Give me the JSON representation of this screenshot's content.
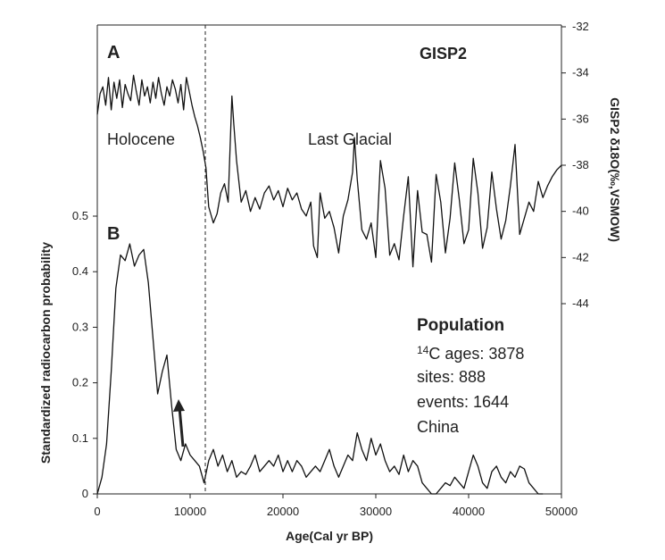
{
  "chart_data": [
    {
      "panel": "A",
      "type": "line",
      "title": "GISP2",
      "ylabel": "GISP2 δ18O(‰,VSMOW)",
      "xlabel": "Age(Cal yr BP)",
      "xlim": [
        0,
        50000
      ],
      "ylim": [
        -44,
        -32
      ],
      "y_inverted": true,
      "y_ticks": [
        -32,
        -34,
        -36,
        -38,
        -40,
        -42,
        -44
      ],
      "annotations": [
        "Holocene",
        "Last Glacial"
      ],
      "x": [
        0,
        300,
        600,
        900,
        1200,
        1500,
        1800,
        2100,
        2400,
        2700,
        3000,
        3300,
        3600,
        3900,
        4200,
        4500,
        4800,
        5100,
        5400,
        5700,
        6000,
        6300,
        6600,
        6900,
        7200,
        7500,
        7800,
        8100,
        8400,
        8700,
        9000,
        9300,
        9600,
        9900,
        10200,
        10500,
        10800,
        11100,
        11400,
        11700,
        12000,
        12500,
        12900,
        13300,
        13700,
        14100,
        14500,
        14700,
        15000,
        15500,
        16000,
        16500,
        17000,
        17500,
        18000,
        18500,
        19000,
        19500,
        20000,
        20500,
        21000,
        21500,
        22000,
        22500,
        23000,
        23300,
        23700,
        24000,
        24500,
        25000,
        25500,
        26000,
        26500,
        27000,
        27500,
        27700,
        28000,
        28500,
        29000,
        29500,
        30000,
        30500,
        31000,
        31500,
        32000,
        32500,
        33000,
        33500,
        34000,
        34500,
        35000,
        35500,
        36000,
        36500,
        37000,
        37500,
        38000,
        38500,
        39000,
        39500,
        40000,
        40500,
        41000,
        41500,
        42000,
        42500,
        43000,
        43500,
        44000,
        44500,
        45000,
        45500,
        46000,
        46500,
        47000,
        47500,
        48000,
        48500,
        49000,
        49500,
        50000
      ],
      "values": [
        -35.8,
        -34.9,
        -34.6,
        -35.4,
        -34.2,
        -35.6,
        -34.4,
        -35.1,
        -34.3,
        -35.5,
        -34.5,
        -34.9,
        -35.2,
        -34.1,
        -34.8,
        -35.4,
        -34.3,
        -35.0,
        -34.6,
        -35.3,
        -34.4,
        -35.1,
        -34.2,
        -34.9,
        -35.4,
        -34.6,
        -35.0,
        -34.3,
        -34.7,
        -35.3,
        -34.5,
        -35.6,
        -34.2,
        -34.8,
        -35.4,
        -35.9,
        -36.3,
        -36.8,
        -37.4,
        -38.1,
        -39.8,
        -40.5,
        -40.1,
        -39.2,
        -38.8,
        -39.6,
        -35.0,
        -36.2,
        -37.8,
        -39.6,
        -39.1,
        -40.0,
        -39.4,
        -39.9,
        -39.2,
        -38.9,
        -39.5,
        -39.1,
        -39.8,
        -39.0,
        -39.5,
        -39.2,
        -39.9,
        -40.2,
        -39.6,
        -41.5,
        -42.0,
        -39.2,
        -40.3,
        -40.0,
        -40.7,
        -41.8,
        -40.2,
        -39.5,
        -38.3,
        -36.8,
        -38.6,
        -40.8,
        -41.2,
        -40.5,
        -42.0,
        -37.8,
        -39.0,
        -41.9,
        -41.4,
        -42.1,
        -40.2,
        -38.5,
        -42.4,
        -39.1,
        -40.9,
        -41.0,
        -42.2,
        -38.4,
        -39.6,
        -41.8,
        -40.3,
        -37.9,
        -39.5,
        -41.4,
        -40.8,
        -37.7,
        -39.2,
        -41.6,
        -40.7,
        -38.3,
        -39.9,
        -41.2,
        -40.4,
        -38.9,
        -37.1,
        -41.0,
        -40.3,
        -39.6,
        -40.0,
        -38.7,
        -39.4,
        -38.9,
        -38.5,
        -38.2,
        -38.0
      ]
    },
    {
      "panel": "B",
      "type": "line",
      "ylabel": "Standardized radiocarbon probability",
      "xlabel": "Age(Cal yr BP)",
      "xlim": [
        0,
        50000
      ],
      "ylim": [
        0,
        0.5
      ],
      "y_ticks": [
        0,
        0.1,
        0.2,
        0.3,
        0.4,
        0.5
      ],
      "y_tick_labels": [
        "0",
        "0.1",
        "0.2",
        "0.3",
        "0.4",
        "0.5"
      ],
      "x_ticks": [
        0,
        10000,
        20000,
        30000,
        40000,
        50000
      ],
      "x_tick_labels": [
        "0",
        "10000",
        "20000",
        "30000",
        "40000",
        "50000"
      ],
      "x": [
        0,
        500,
        1000,
        1500,
        2000,
        2500,
        3000,
        3500,
        4000,
        4500,
        5000,
        5500,
        6000,
        6500,
        7000,
        7500,
        8000,
        8500,
        9000,
        9500,
        10000,
        10500,
        11000,
        11500,
        12000,
        12500,
        13000,
        13500,
        14000,
        14500,
        15000,
        15500,
        16000,
        16500,
        17000,
        17500,
        18000,
        18500,
        19000,
        19500,
        20000,
        20500,
        21000,
        21500,
        22000,
        22500,
        23000,
        23500,
        24000,
        24500,
        25000,
        25500,
        26000,
        26500,
        27000,
        27500,
        28000,
        28500,
        29000,
        29500,
        30000,
        30500,
        31000,
        31500,
        32000,
        32500,
        33000,
        33500,
        34000,
        34500,
        35000,
        35500,
        36000,
        36500,
        37000,
        37500,
        38000,
        38500,
        39000,
        39500,
        40000,
        40500,
        41000,
        41500,
        42000,
        42500,
        43000,
        43500,
        44000,
        44500,
        45000,
        45500,
        46000,
        46500,
        47000,
        47500,
        48000
      ],
      "values": [
        0.0,
        0.03,
        0.09,
        0.22,
        0.37,
        0.43,
        0.42,
        0.45,
        0.41,
        0.43,
        0.44,
        0.38,
        0.28,
        0.18,
        0.22,
        0.25,
        0.16,
        0.08,
        0.06,
        0.09,
        0.07,
        0.06,
        0.05,
        0.02,
        0.06,
        0.08,
        0.05,
        0.07,
        0.04,
        0.06,
        0.03,
        0.04,
        0.035,
        0.05,
        0.07,
        0.04,
        0.05,
        0.06,
        0.05,
        0.07,
        0.04,
        0.06,
        0.04,
        0.06,
        0.05,
        0.03,
        0.04,
        0.05,
        0.04,
        0.06,
        0.08,
        0.05,
        0.03,
        0.05,
        0.07,
        0.06,
        0.11,
        0.08,
        0.06,
        0.1,
        0.07,
        0.09,
        0.06,
        0.04,
        0.05,
        0.035,
        0.07,
        0.04,
        0.06,
        0.05,
        0.02,
        0.01,
        0.0,
        0.0,
        0.01,
        0.02,
        0.015,
        0.03,
        0.02,
        0.01,
        0.04,
        0.07,
        0.05,
        0.02,
        0.01,
        0.04,
        0.05,
        0.03,
        0.02,
        0.04,
        0.03,
        0.05,
        0.045,
        0.02,
        0.01,
        0.0,
        0.0
      ]
    }
  ],
  "labels": {
    "panel_a": "A",
    "panel_b": "B",
    "gisp2_title": "GISP2",
    "holocene": "Holocene",
    "last_glacial": "Last Glacial",
    "xlabel": "Age(Cal yr BP)",
    "ylabel_left": "Standardized radiocarbon probability",
    "ylabel_right": "GISP2 δ18O(‰,VSMOW)"
  },
  "population": {
    "heading": "Population",
    "c14_ages": "14C ages: 3878",
    "sites": "sites: 888",
    "events": "events: 1644",
    "region": "China"
  },
  "colors": {
    "line": "#111111",
    "axis": "#222222"
  }
}
